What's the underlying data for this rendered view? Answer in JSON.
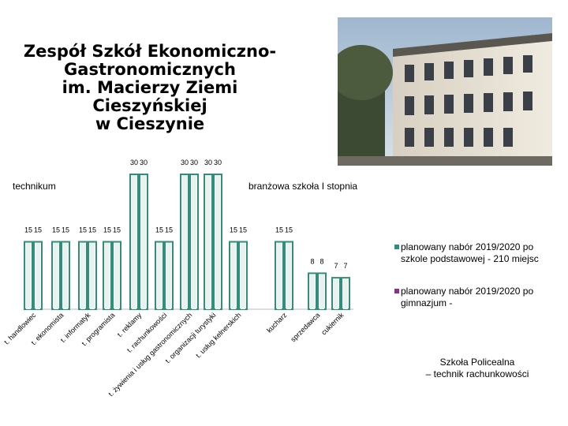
{
  "slide": {
    "title": "Zespół Szkół Ekonomiczno-\nGastronomicznych\nim. Macierzy Ziemi\nCieszyńskiej\nw Cieszynie",
    "photo_icon": "school-building-photo",
    "footnote": "Szkoła Policealna\n– technik rachunkowości"
  },
  "groups": {
    "technikum": "technikum",
    "branzowa": "branżowa szkoła I stopnia"
  },
  "colors": {
    "series1": "#2f8f7a",
    "series2": "#8a2f8c",
    "bar_face": "#ffffff"
  },
  "chart_data": {
    "type": "bar",
    "categories": [
      "t. handlowiec",
      "t. ekonomista",
      "t. informatyk",
      "t. programista",
      "t. reklamy",
      "t. rachunkowości",
      "t. żywienia i usług gastronomicznych",
      "t. organizacji turystyki",
      "t. usług kelnerskich",
      "kucharz",
      "sprzedawca",
      "cukiernik"
    ],
    "series": [
      {
        "name": "planowany nabór 2019/2020 po szkole podstawowej - 210 miejsc",
        "values": [
          15,
          15,
          15,
          15,
          30,
          15,
          30,
          30,
          15,
          15,
          8,
          7
        ]
      },
      {
        "name": "planowany nabór 2019/2020 po gimnazjum -",
        "values": [
          15,
          15,
          15,
          15,
          30,
          15,
          30,
          30,
          15,
          15,
          8,
          7
        ]
      }
    ],
    "data_labels": [
      "15",
      "15",
      "15",
      "15",
      "30",
      "15",
      "30",
      "30",
      "15",
      "15",
      "8",
      "7"
    ],
    "legend_position": "right",
    "grid": false
  }
}
